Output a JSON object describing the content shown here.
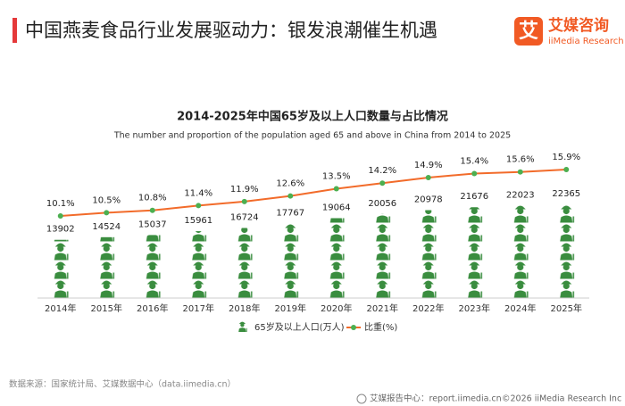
{
  "header": {
    "title": "中国燕麦食品行业发展驱动力：银发浪潮催生机遇",
    "logo": {
      "mark": "艾",
      "name": "艾媒咨询",
      "sub": "iiMedia Research"
    }
  },
  "chart_data": {
    "type": "pictorial-bar-line",
    "title": "2014-2025年中国65岁及以上人口数量与占比情况",
    "subtitle": "The number and proportion of the population aged 65 and above in China from 2014 to 2025",
    "categories": [
      "2014年",
      "2015年",
      "2016年",
      "2017年",
      "2018年",
      "2019年",
      "2020年",
      "2021年",
      "2022年",
      "2023年",
      "2024年",
      "2025年"
    ],
    "series": [
      {
        "name": "65岁及以上人口(万人)",
        "color": "#3a8d3f",
        "values": [
          13902,
          14524,
          15037,
          15961,
          16724,
          17767,
          19064,
          20056,
          20978,
          21676,
          22023,
          22365
        ]
      },
      {
        "name": "比重(%)",
        "color": "#f26b2a",
        "marker_color": "#4caf50",
        "values": [
          10.1,
          10.5,
          10.8,
          11.4,
          11.9,
          12.6,
          13.5,
          14.2,
          14.9,
          15.4,
          15.6,
          15.9
        ],
        "value_labels": [
          "10.1%",
          "10.5%",
          "10.8%",
          "11.4%",
          "11.9%",
          "12.6%",
          "13.5%",
          "14.2%",
          "14.9%",
          "15.4%",
          "15.6%",
          "15.9%"
        ]
      }
    ]
  },
  "footer": {
    "source": "数据来源：国家统计局、艾媒数据中心（data.iimedia.cn）",
    "report_center": "艾媒报告中心：report.iimedia.cn",
    "copyright": "©2026  iiMedia Research  Inc"
  }
}
